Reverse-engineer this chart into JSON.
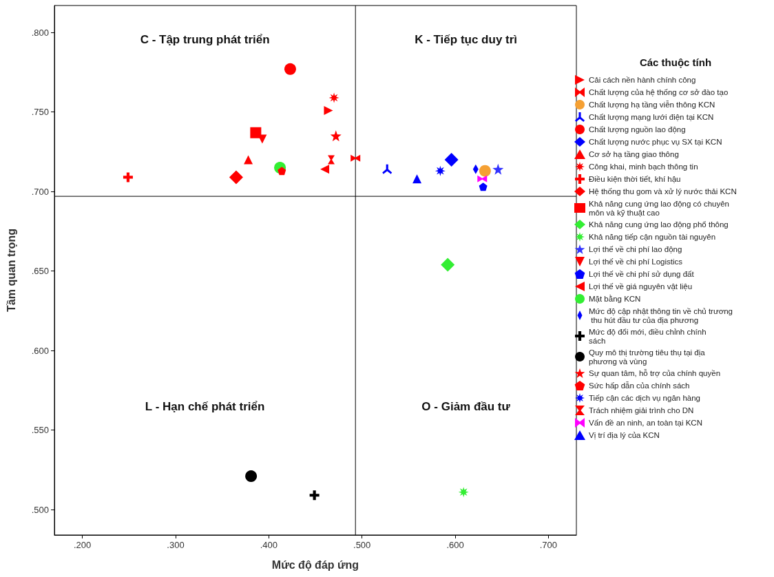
{
  "chart_data": {
    "type": "scatter",
    "xlabel": "Mức độ đáp ứng",
    "ylabel": "Tầm quan trọng",
    "legend_title": "Các thuộc tính",
    "legend": "right",
    "grid": false,
    "xlim": [
      0.17,
      0.73
    ],
    "ylim": [
      0.484,
      0.817
    ],
    "xticks": [
      {
        "value": 0.2,
        "label": ".200"
      },
      {
        "value": 0.3,
        "label": ".300"
      },
      {
        "value": 0.4,
        "label": ".400"
      },
      {
        "value": 0.5,
        "label": ".500"
      },
      {
        "value": 0.6,
        "label": ".600"
      },
      {
        "value": 0.7,
        "label": ".700"
      }
    ],
    "yticks": [
      {
        "value": 0.5,
        "label": ".500"
      },
      {
        "value": 0.55,
        "label": ".550"
      },
      {
        "value": 0.6,
        "label": ".600"
      },
      {
        "value": 0.65,
        "label": ".650"
      },
      {
        "value": 0.7,
        "label": ".700"
      },
      {
        "value": 0.75,
        "label": ".750"
      },
      {
        "value": 0.8,
        "label": ".800"
      }
    ],
    "ref_lines": [
      {
        "axis": "x",
        "value": 0.493,
        "color": "#000000"
      },
      {
        "axis": "y",
        "value": 0.697,
        "color": "#000000"
      }
    ],
    "annotations": [
      "C - Tập trung phát triển",
      "K - Tiếp tục duy trì",
      "L - Hạn chế phát triển",
      "O - Giảm đầu tư"
    ],
    "series": [
      {
        "name": "Cải cách nền hành chính công",
        "color": "#ff0000",
        "marker": "triangle-right",
        "x": [
          0.464
        ],
        "values": [
          0.751
        ]
      },
      {
        "name": "Chất lượng của hệ thống cơ sở đào tạo",
        "color": "#ff0000",
        "x": [
          0.493
        ],
        "values": [
          0.721
        ]
      },
      {
        "name": "Chất lượng hạ tầng viễn thông KCN",
        "color": "#f5a033",
        "marker": "circle",
        "x": [
          0.632
        ],
        "values": [
          0.713
        ]
      },
      {
        "name": "Chất lượng mạng lưới điện tại KCN",
        "color": "#0000ff",
        "x": [
          0.527
        ],
        "values": [
          0.714
        ]
      },
      {
        "name": "Chất lượng nguồn lao động",
        "color": "#ff0000",
        "marker": "circle",
        "x": [
          0.423
        ],
        "values": [
          0.777
        ]
      },
      {
        "name": "Chất lượng nước phục vụ SX tại KCN",
        "color": "#0000ff",
        "marker": "diamond",
        "x": [
          0.596
        ],
        "values": [
          0.72
        ]
      },
      {
        "name": "Cơ sở hạ tầng giao thông",
        "color": "#ff0000",
        "marker": "triangle",
        "x": [
          0.378
        ],
        "values": [
          0.72
        ]
      },
      {
        "name": "Công khai, minh bạch thông tin",
        "color": "#ff0000",
        "marker": "asterisk",
        "x": [
          0.47
        ],
        "values": [
          0.759
        ]
      },
      {
        "name": "Điều kiện thời tiết, khí hậu",
        "color": "#ff0000",
        "marker": "cross",
        "x": [
          0.249
        ],
        "values": [
          0.709
        ]
      },
      {
        "name": "Hệ thống thu gom và xử lý nước thải KCN",
        "color": "#ff0000",
        "marker": "diamond",
        "x": [
          0.365
        ],
        "values": [
          0.709
        ]
      },
      {
        "name": "Khả năng cung ứng lao động có chuyên môn và kỹ thuật cao",
        "color": "#ff0000",
        "marker": "square",
        "x": [
          0.386
        ],
        "values": [
          0.737
        ]
      },
      {
        "name": "Khả năng cung ứng lao động phổ thông",
        "color": "#33ee33",
        "marker": "diamond",
        "x": [
          0.592
        ],
        "values": [
          0.654
        ]
      },
      {
        "name": "Khả năng tiếp cận nguồn tài nguyên",
        "color": "#33ee33",
        "marker": "asterisk",
        "x": [
          0.609
        ],
        "values": [
          0.511
        ]
      },
      {
        "name": "Lợi thế về chi phí lao động",
        "color": "#3333ff",
        "marker": "star",
        "x": [
          0.646
        ],
        "values": [
          0.714
        ]
      },
      {
        "name": "Lợi thế về chi phí Logistics",
        "color": "#ff0000",
        "marker": "triangle-down",
        "x": [
          0.393
        ],
        "values": [
          0.733
        ]
      },
      {
        "name": "Lợi thế về chi phí sử dụng đất",
        "color": "#0000ff",
        "x": [
          0.63
        ],
        "values": [
          0.703
        ]
      },
      {
        "name": "Lợi thế về giá nguyên vật liệu",
        "color": "#ff0000",
        "marker": "triangle-left",
        "x": [
          0.46
        ],
        "values": [
          0.714
        ]
      },
      {
        "name": "Mặt bằng KCN",
        "color": "#33ee33",
        "marker": "circle",
        "x": [
          0.412
        ],
        "values": [
          0.715
        ]
      },
      {
        "name": "Mức độ cập nhật thông tin về chủ trương thu hút đầu tư của địa phương",
        "color": "#0000ff",
        "x": [
          0.622
        ],
        "values": [
          0.714
        ]
      },
      {
        "name": "Mức độ đổi mới, điều chỉnh chính sách",
        "color": "#000000",
        "marker": "cross",
        "x": [
          0.449
        ],
        "values": [
          0.509
        ]
      },
      {
        "name": "Quy mô thị trường tiêu thụ tại địa phương và vùng",
        "color": "#000000",
        "marker": "circle",
        "x": [
          0.381
        ],
        "values": [
          0.521
        ]
      },
      {
        "name": "Sự quan tâm, hỗ trợ của chính quyền",
        "color": "#ff0000",
        "marker": "star",
        "x": [
          0.472
        ],
        "values": [
          0.735
        ]
      },
      {
        "name": "Sức hấp dẫn của chính sách",
        "color": "#ff0000",
        "x": [
          0.414
        ],
        "values": [
          0.713
        ]
      },
      {
        "name": "Tiếp cận các dịch vụ ngân hàng",
        "color": "#0000ff",
        "marker": "asterisk",
        "x": [
          0.584
        ],
        "values": [
          0.713
        ]
      },
      {
        "name": "Trách nhiệm giải trình cho DN",
        "color": "#ff0000",
        "x": [
          0.467
        ],
        "values": [
          0.72
        ]
      },
      {
        "name": "Vấn đề an ninh, an toàn tại KCN",
        "color": "#ff00ff",
        "x": [
          0.629
        ],
        "values": [
          0.708
        ]
      },
      {
        "name": "Vị trí địa lý của KCN",
        "color": "#0000ff",
        "marker": "triangle",
        "x": [
          0.559
        ],
        "values": [
          0.708
        ]
      }
    ]
  }
}
